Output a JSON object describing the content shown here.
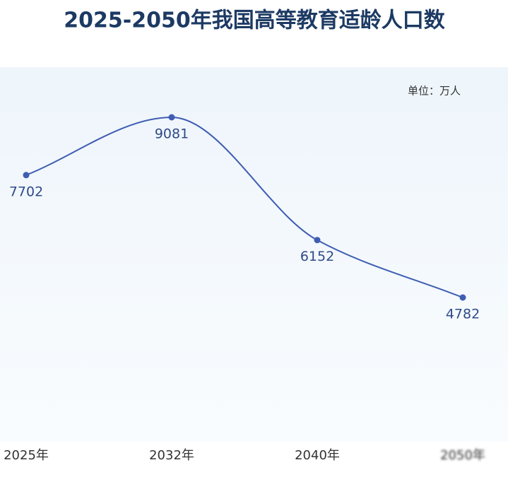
{
  "chart_data": {
    "type": "line",
    "title": "2025-2050年我国高等教育适龄人口数",
    "annotation": "单位：万人",
    "categories": [
      "2025年",
      "2032年",
      "2040年",
      "2050年"
    ],
    "values": [
      7702,
      9081,
      6152,
      4782
    ],
    "color": "#3f5db3"
  }
}
